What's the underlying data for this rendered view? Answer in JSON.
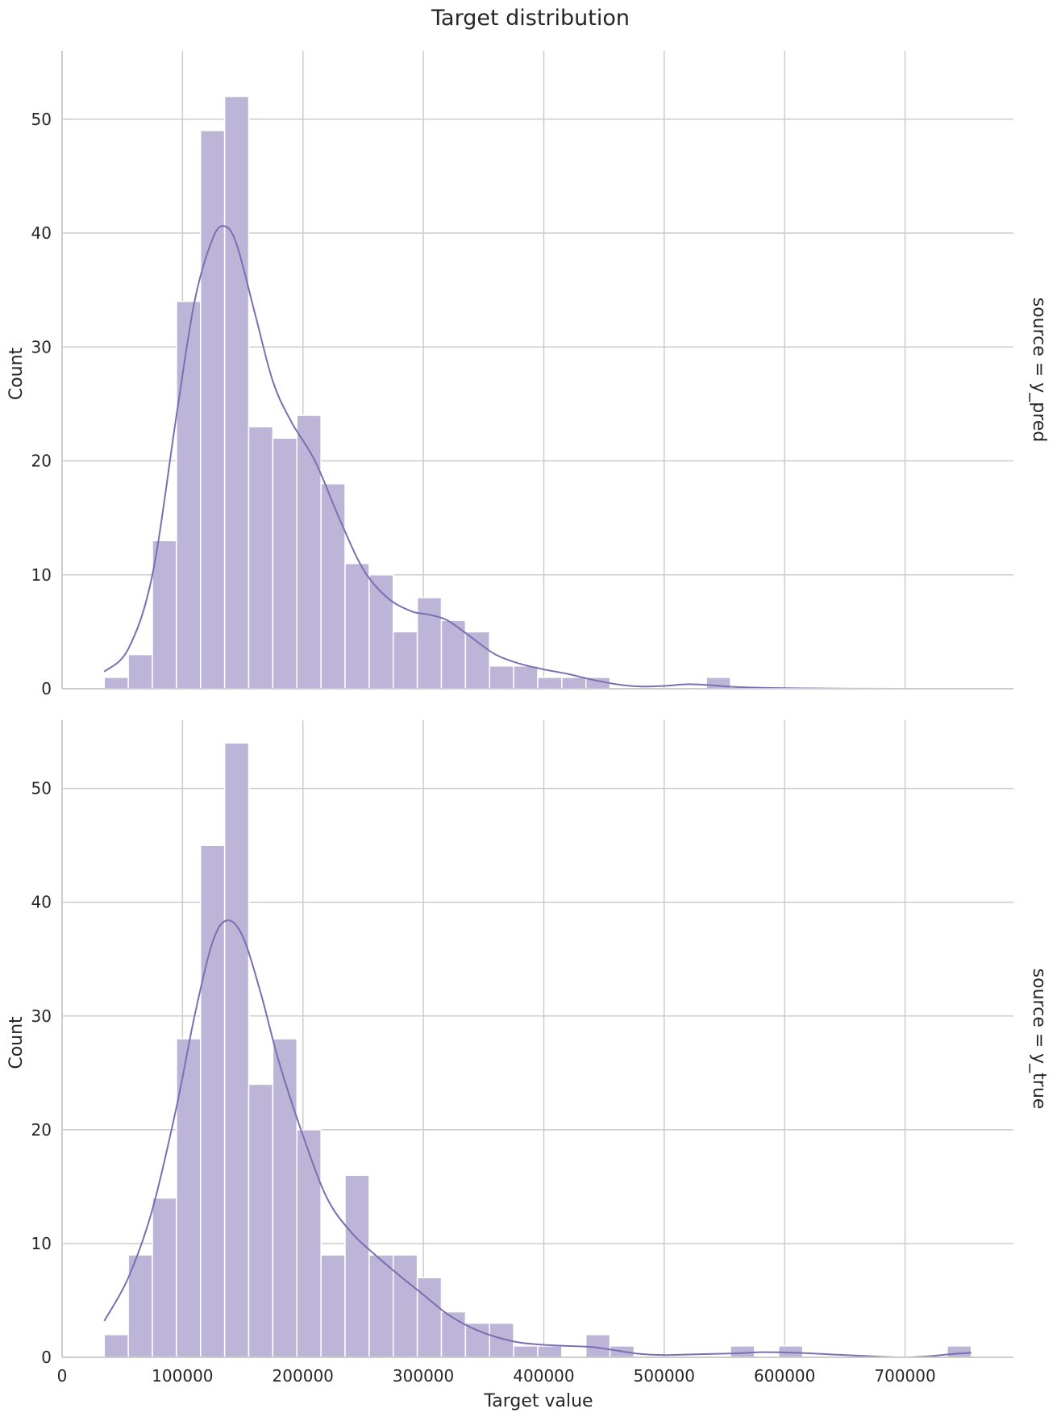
{
  "chart_data": {
    "type": "bar",
    "title": "Target distribution",
    "xlabel": "Target value",
    "ylabel": "Count",
    "xlim": [
      0,
      790000
    ],
    "ylim": [
      0,
      56
    ],
    "xticks": [
      0,
      100000,
      200000,
      300000,
      400000,
      500000,
      600000,
      700000
    ],
    "yticks": [
      0,
      10,
      20,
      30,
      40,
      50
    ],
    "grid": true,
    "bin_start": 35000,
    "bin_width": 20000,
    "colors": {
      "bar": "#bcb5d8",
      "kde": "#7b6fb0"
    },
    "facets": [
      {
        "label": "source = y_pred",
        "counts": [
          1,
          3,
          13,
          34,
          49,
          52,
          23,
          22,
          24,
          18,
          11,
          10,
          5,
          8,
          6,
          5,
          2,
          2,
          1,
          1,
          1,
          0,
          0,
          0,
          0,
          1,
          0,
          0,
          0,
          0,
          0,
          0,
          0,
          0,
          0,
          0
        ],
        "kde": [
          [
            35000,
            1.5
          ],
          [
            55000,
            3.5
          ],
          [
            75000,
            10
          ],
          [
            95000,
            24
          ],
          [
            110000,
            34
          ],
          [
            125000,
            39.5
          ],
          [
            135000,
            40.6
          ],
          [
            145000,
            39
          ],
          [
            160000,
            33
          ],
          [
            175000,
            27
          ],
          [
            190000,
            23.5
          ],
          [
            210000,
            20
          ],
          [
            230000,
            15
          ],
          [
            250000,
            10.5
          ],
          [
            270000,
            8
          ],
          [
            290000,
            6.8
          ],
          [
            305000,
            6.5
          ],
          [
            320000,
            6
          ],
          [
            340000,
            4.5
          ],
          [
            360000,
            3
          ],
          [
            380000,
            2.2
          ],
          [
            400000,
            1.7
          ],
          [
            420000,
            1.3
          ],
          [
            440000,
            0.8
          ],
          [
            460000,
            0.4
          ],
          [
            480000,
            0.2
          ],
          [
            500000,
            0.25
          ],
          [
            520000,
            0.4
          ],
          [
            540000,
            0.3
          ],
          [
            560000,
            0.15
          ],
          [
            600000,
            0.05
          ],
          [
            650000,
            0.01
          ],
          [
            755000,
            0
          ]
        ]
      },
      {
        "label": "source = y_true",
        "counts": [
          2,
          9,
          14,
          28,
          45,
          54,
          24,
          28,
          20,
          9,
          16,
          9,
          9,
          7,
          4,
          3,
          3,
          1,
          1,
          0,
          2,
          1,
          0,
          0,
          0,
          0,
          1,
          0,
          1,
          0,
          0,
          0,
          0,
          0,
          0,
          1
        ],
        "kde": [
          [
            35000,
            3.2
          ],
          [
            55000,
            7
          ],
          [
            75000,
            13
          ],
          [
            95000,
            22
          ],
          [
            110000,
            30
          ],
          [
            125000,
            36.5
          ],
          [
            137000,
            38.4
          ],
          [
            150000,
            37
          ],
          [
            165000,
            32
          ],
          [
            180000,
            26
          ],
          [
            200000,
            19.5
          ],
          [
            220000,
            14
          ],
          [
            240000,
            11
          ],
          [
            260000,
            9
          ],
          [
            280000,
            7.2
          ],
          [
            300000,
            5.5
          ],
          [
            320000,
            3.8
          ],
          [
            340000,
            2.6
          ],
          [
            360000,
            1.8
          ],
          [
            380000,
            1.3
          ],
          [
            400000,
            1.1
          ],
          [
            420000,
            1
          ],
          [
            440000,
            0.9
          ],
          [
            460000,
            0.6
          ],
          [
            480000,
            0.3
          ],
          [
            500000,
            0.2
          ],
          [
            520000,
            0.25
          ],
          [
            560000,
            0.35
          ],
          [
            580000,
            0.45
          ],
          [
            610000,
            0.4
          ],
          [
            640000,
            0.25
          ],
          [
            680000,
            0.05
          ],
          [
            700000,
            0
          ],
          [
            720000,
            0.1
          ],
          [
            740000,
            0.3
          ],
          [
            755000,
            0.4
          ]
        ]
      }
    ]
  }
}
